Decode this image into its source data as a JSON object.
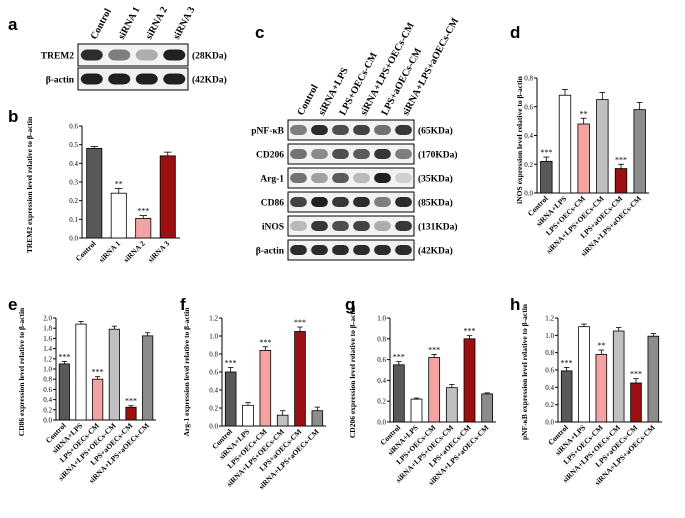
{
  "panels": [
    "a",
    "b",
    "c",
    "d",
    "e",
    "f",
    "g",
    "h"
  ],
  "blot_a": {
    "lanes": [
      "Control",
      "siRNA 1",
      "siRNA 2",
      "siRNA 3"
    ],
    "rows": [
      {
        "label": "TREM2",
        "size": "(28KDa)",
        "intensity": [
          0.9,
          0.55,
          0.35,
          0.95
        ]
      },
      {
        "label": "β-actin",
        "size": "(42KDa)",
        "intensity": [
          0.95,
          0.95,
          0.95,
          0.95
        ]
      }
    ]
  },
  "blot_c": {
    "lanes": [
      "Control",
      "siRNA+LPS",
      "LPS+OECs-CM",
      "siRNA+LPS+OECs-CM",
      "LPS+aOECs-CM",
      "siRNA+LPS+aOECs-CM"
    ],
    "rows": [
      {
        "label": "pNF-κB",
        "size": "(65KDa)",
        "intensity": [
          0.55,
          0.9,
          0.75,
          0.8,
          0.6,
          0.85
        ]
      },
      {
        "label": "CD206",
        "size": "(170KDa)",
        "intensity": [
          0.6,
          0.5,
          0.75,
          0.7,
          0.85,
          0.55
        ]
      },
      {
        "label": "Arg-1",
        "size": "(35KDa)",
        "intensity": [
          0.6,
          0.4,
          0.7,
          0.3,
          0.95,
          0.2
        ]
      },
      {
        "label": "CD86",
        "size": "(85KDa)",
        "intensity": [
          0.8,
          0.95,
          0.85,
          0.9,
          0.55,
          0.9
        ]
      },
      {
        "label": "iNOS",
        "size": "(131KDa)",
        "intensity": [
          0.3,
          0.85,
          0.75,
          0.8,
          0.35,
          0.85
        ]
      },
      {
        "label": "β-actin",
        "size": "(42KDa)",
        "intensity": [
          0.9,
          0.9,
          0.9,
          0.9,
          0.9,
          0.9
        ]
      }
    ]
  },
  "colors": {
    "control": "#595959",
    "sirna_lps": "#ffffff",
    "lps_oecs": "#f4a3a3",
    "sirna_lps_oecs": "#c0c0c0",
    "lps_aoecs": "#9b1010",
    "sirna_lps_aoecs": "#8c8c8c",
    "sirna1": "#ffffff",
    "sirna2": "#f4a3a3",
    "sirna3": "#9b1010"
  },
  "chart_data": [
    {
      "panel": "b",
      "type": "bar",
      "categories": [
        "Control",
        "siRNA 1",
        "siRNA 2",
        "siRNA 3"
      ],
      "values": [
        0.48,
        0.24,
        0.105,
        0.44
      ],
      "errors": [
        0.01,
        0.025,
        0.015,
        0.02
      ],
      "stars": [
        "",
        "**",
        "***",
        ""
      ],
      "colors": [
        "#595959",
        "#ffffff",
        "#f4a3a3",
        "#9b1010"
      ],
      "ylabel": "TREM2 expression level relative to β-actin",
      "ylim": [
        0,
        0.6
      ],
      "ticks": [
        "0.0",
        "0.1",
        "0.2",
        "0.3",
        "0.4",
        "0.5",
        "0.6"
      ]
    },
    {
      "panel": "d",
      "type": "bar",
      "categories": [
        "Control",
        "siRNA+LPS",
        "LPS+OECs-CM",
        "siRNA+LPS+OECs-CM",
        "LPS+aOECs-CM",
        "siRNA+LPS+aOECs-CM"
      ],
      "values": [
        0.22,
        0.68,
        0.48,
        0.65,
        0.17,
        0.58
      ],
      "errors": [
        0.03,
        0.04,
        0.04,
        0.05,
        0.03,
        0.05
      ],
      "stars": [
        "***",
        "",
        "**",
        "",
        "***",
        ""
      ],
      "colors": [
        "#595959",
        "#ffffff",
        "#f4a3a3",
        "#c0c0c0",
        "#9b1010",
        "#8c8c8c"
      ],
      "ylabel": "iNOS expression level relative to β-actin",
      "ylim": [
        0,
        0.8
      ],
      "ticks": [
        "0.0",
        "0.2",
        "0.4",
        "0.6",
        "0.8"
      ]
    },
    {
      "panel": "e",
      "type": "bar",
      "categories": [
        "Control",
        "siRNA+LPS",
        "LPS+OECs-CM",
        "siRNA+LPS+OECs-CM",
        "LPS+aOECs-CM",
        "siRNA+LPS+aOECs-CM"
      ],
      "values": [
        1.1,
        1.88,
        0.8,
        1.78,
        0.25,
        1.65
      ],
      "errors": [
        0.05,
        0.05,
        0.05,
        0.06,
        0.03,
        0.06
      ],
      "stars": [
        "***",
        "",
        "***",
        "",
        "***",
        ""
      ],
      "colors": [
        "#595959",
        "#ffffff",
        "#f4a3a3",
        "#c0c0c0",
        "#9b1010",
        "#8c8c8c"
      ],
      "ylabel": "CD86 expression level relative to β-actin",
      "ylim": [
        0,
        2.0
      ],
      "ticks": [
        "0.0",
        "0.2",
        "0.4",
        "0.6",
        "0.8",
        "1.0",
        "1.2",
        "1.4",
        "1.6",
        "1.8",
        "2.0"
      ]
    },
    {
      "panel": "f",
      "type": "bar",
      "categories": [
        "Control",
        "siRNA+LPS",
        "LPS+OECs-CM",
        "siRNA+LPS+OECs-CM",
        "LPS+aOECs-CM",
        "siRNA+LPS+aOECs-CM"
      ],
      "values": [
        0.6,
        0.23,
        0.84,
        0.12,
        1.05,
        0.17
      ],
      "errors": [
        0.05,
        0.03,
        0.04,
        0.05,
        0.05,
        0.04
      ],
      "stars": [
        "***",
        "",
        "***",
        "",
        "***",
        ""
      ],
      "colors": [
        "#595959",
        "#ffffff",
        "#f4a3a3",
        "#c0c0c0",
        "#9b1010",
        "#8c8c8c"
      ],
      "ylabel": "Arg-1 expression level relative to β-actin",
      "ylim": [
        0,
        1.2
      ],
      "ticks": [
        "0.0",
        "0.2",
        "0.4",
        "0.6",
        "0.8",
        "1.0",
        "1.2"
      ]
    },
    {
      "panel": "g",
      "type": "bar",
      "categories": [
        "Control",
        "siRNA+LPS",
        "LPS+OECs-CM",
        "siRNA+LPS+OECs-CM",
        "LPS+aOECs-CM",
        "siRNA+LPS+aOECs-CM"
      ],
      "values": [
        0.55,
        0.22,
        0.62,
        0.33,
        0.8,
        0.27
      ],
      "errors": [
        0.03,
        0.01,
        0.03,
        0.03,
        0.03,
        0.01
      ],
      "stars": [
        "***",
        "",
        "***",
        "",
        "***",
        ""
      ],
      "colors": [
        "#595959",
        "#ffffff",
        "#f4a3a3",
        "#c0c0c0",
        "#9b1010",
        "#8c8c8c"
      ],
      "ylabel": "CD206 expression level relative to β-actin",
      "ylim": [
        0,
        1.0
      ],
      "ticks": [
        "0.0",
        "0.2",
        "0.4",
        "0.6",
        "0.8",
        "1.0"
      ]
    },
    {
      "panel": "h",
      "type": "bar",
      "categories": [
        "Control",
        "siRNA+LPS",
        "LPS+OECs-CM",
        "siRNA+LPS+OECs-CM",
        "LPS+aOECs-CM",
        "siRNA+LPS+aOECs-CM"
      ],
      "values": [
        0.59,
        1.1,
        0.78,
        1.05,
        0.45,
        0.99
      ],
      "errors": [
        0.04,
        0.03,
        0.05,
        0.04,
        0.05,
        0.03
      ],
      "stars": [
        "***",
        "",
        "**",
        "",
        "***",
        ""
      ],
      "colors": [
        "#595959",
        "#ffffff",
        "#f4a3a3",
        "#c0c0c0",
        "#9b1010",
        "#8c8c8c"
      ],
      "ylabel": "pNF-κB expression level relative to β-actin",
      "ylim": [
        0,
        1.2
      ],
      "ticks": [
        "0.0",
        "0.2",
        "0.4",
        "0.6",
        "0.8",
        "1.0",
        "1.2"
      ]
    }
  ]
}
